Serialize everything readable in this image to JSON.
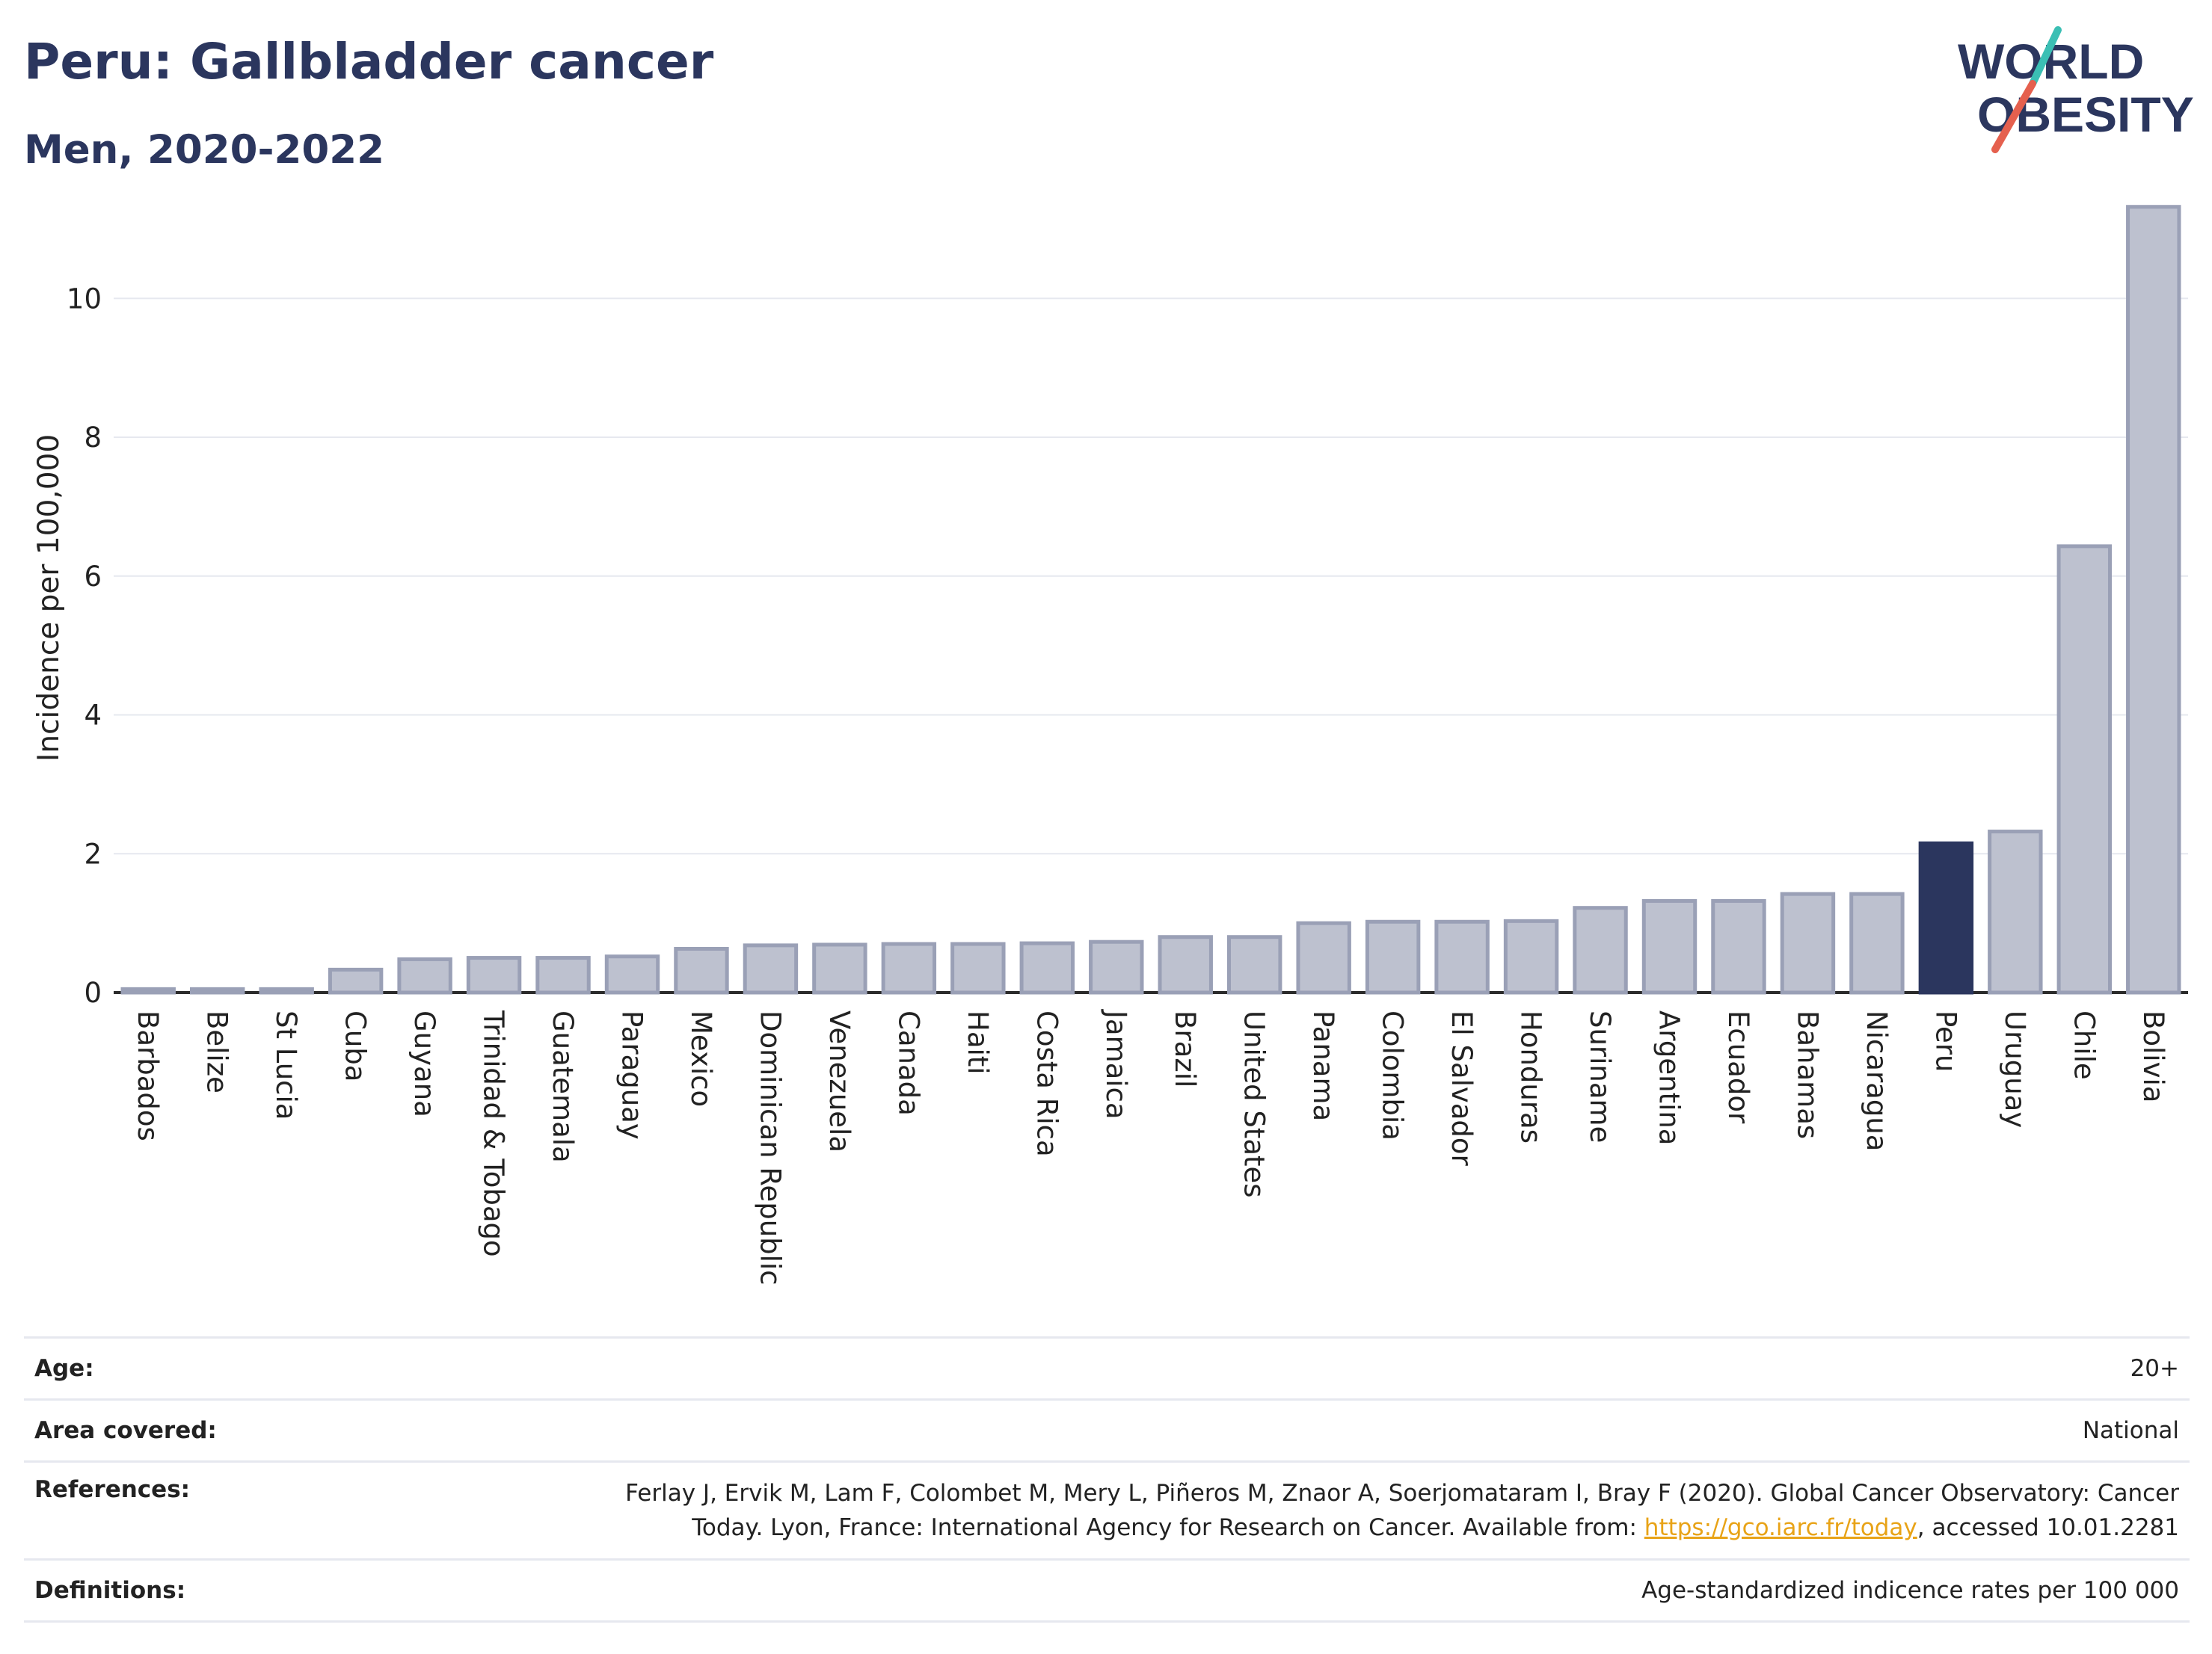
{
  "header": {
    "title": "Peru: Gallbladder cancer",
    "subtitle": "Men, 2020-2022"
  },
  "logo": {
    "line1": "WORLD",
    "line2": "OBESITY"
  },
  "colors": {
    "bar_default": "#bdc1cf",
    "bar_border": "#9aa0b6",
    "bar_highlight": "#2b365e",
    "text": "#2b365e",
    "grid": "#e6e8ef",
    "link": "#e8a317"
  },
  "chart_data": {
    "type": "bar",
    "title": "Peru: Gallbladder cancer",
    "subtitle": "Men, 2020-2022",
    "xlabel": "",
    "ylabel": "Incidence per 100,000",
    "ylim": [
      0,
      11.5
    ],
    "yticks": [
      0,
      2,
      4,
      6,
      8,
      10
    ],
    "grid": true,
    "highlight": "Peru",
    "categories": [
      "Barbados",
      "Belize",
      "St Lucia",
      "Cuba",
      "Guyana",
      "Trinidad & Tobago",
      "Guatemala",
      "Paraguay",
      "Mexico",
      "Dominican Republic",
      "Venezuela",
      "Canada",
      "Haiti",
      "Costa Rica",
      "Jamaica",
      "Brazil",
      "United States",
      "Panama",
      "Colombia",
      "El Salvador",
      "Honduras",
      "Suriname",
      "Argentina",
      "Ecuador",
      "Bahamas",
      "Nicaragua",
      "Peru",
      "Uruguay",
      "Chile",
      "Bolivia"
    ],
    "values": [
      0.05,
      0.05,
      0.05,
      0.33,
      0.48,
      0.5,
      0.5,
      0.52,
      0.63,
      0.68,
      0.69,
      0.7,
      0.7,
      0.71,
      0.73,
      0.8,
      0.8,
      1.0,
      1.02,
      1.02,
      1.03,
      1.22,
      1.32,
      1.32,
      1.42,
      1.42,
      2.15,
      2.32,
      6.43,
      11.32
    ]
  },
  "meta": {
    "age_label": "Age:",
    "age_value": "20+",
    "area_label": "Area covered:",
    "area_value": "National",
    "references_label": "References:",
    "references_text_1": "Ferlay J, Ervik M, Lam F, Colombet M, Mery L, Piñeros M, Znaor A, Soerjomataram I, Bray F (2020). Global Cancer Observatory: Cancer Today. Lyon, France: International Agency for Research on Cancer. Available from: ",
    "references_link": "https://gco.iarc.fr/today",
    "references_text_2": ", accessed 10.01.2281",
    "definitions_label": "Definitions:",
    "definitions_value": "Age-standardized indicence rates per 100 000"
  }
}
